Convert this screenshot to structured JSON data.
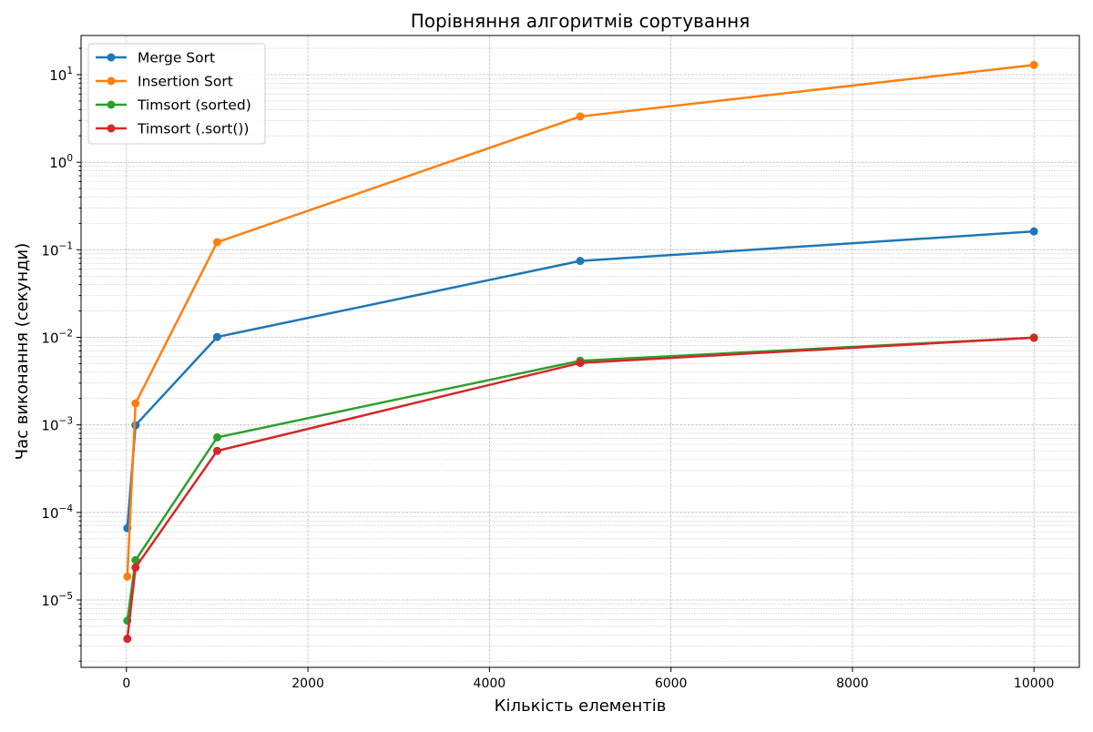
{
  "chart_data": {
    "type": "line",
    "title": "Порівняння алгоритмів сортування",
    "xlabel": "Кількість елементів",
    "ylabel": "Час виконання (секунди)",
    "x": [
      10,
      100,
      1000,
      5000,
      10000
    ],
    "xlim": [
      -500,
      10500
    ],
    "ylim": [
      1.7e-06,
      28
    ],
    "yscale": "log",
    "grid": true,
    "legend_position": "upper-left",
    "x_ticks": [
      0,
      2000,
      4000,
      6000,
      8000,
      10000
    ],
    "x_tick_labels": [
      "0",
      "2000",
      "4000",
      "6000",
      "8000",
      "10000"
    ],
    "y_ticks": [
      1e-05,
      0.0001,
      0.001,
      0.01,
      0.1,
      1,
      10
    ],
    "y_tick_labels": [
      {
        "base": "10",
        "exp": "−5"
      },
      {
        "base": "10",
        "exp": "−4"
      },
      {
        "base": "10",
        "exp": "−3"
      },
      {
        "base": "10",
        "exp": "−2"
      },
      {
        "base": "10",
        "exp": "−1"
      },
      {
        "base": "10",
        "exp": "0"
      },
      {
        "base": "10",
        "exp": "1"
      }
    ],
    "series": [
      {
        "name": "Merge Sort",
        "color": "#1f77b4",
        "values": [
          6.6e-05,
          0.00099,
          0.0101,
          0.0745,
          0.162
        ]
      },
      {
        "name": "Insertion Sort",
        "color": "#ff7f0e",
        "values": [
          1.85e-05,
          0.00176,
          0.122,
          3.33,
          12.9
        ]
      },
      {
        "name": "Timsort (sorted)",
        "color": "#2ca02c",
        "values": [
          5.8e-06,
          2.85e-05,
          0.00072,
          0.0054,
          0.0099
        ]
      },
      {
        "name": "Timsort (.sort())",
        "color": "#d62728",
        "values": [
          3.6e-06,
          2.35e-05,
          0.000505,
          0.0051,
          0.0099
        ]
      }
    ]
  }
}
